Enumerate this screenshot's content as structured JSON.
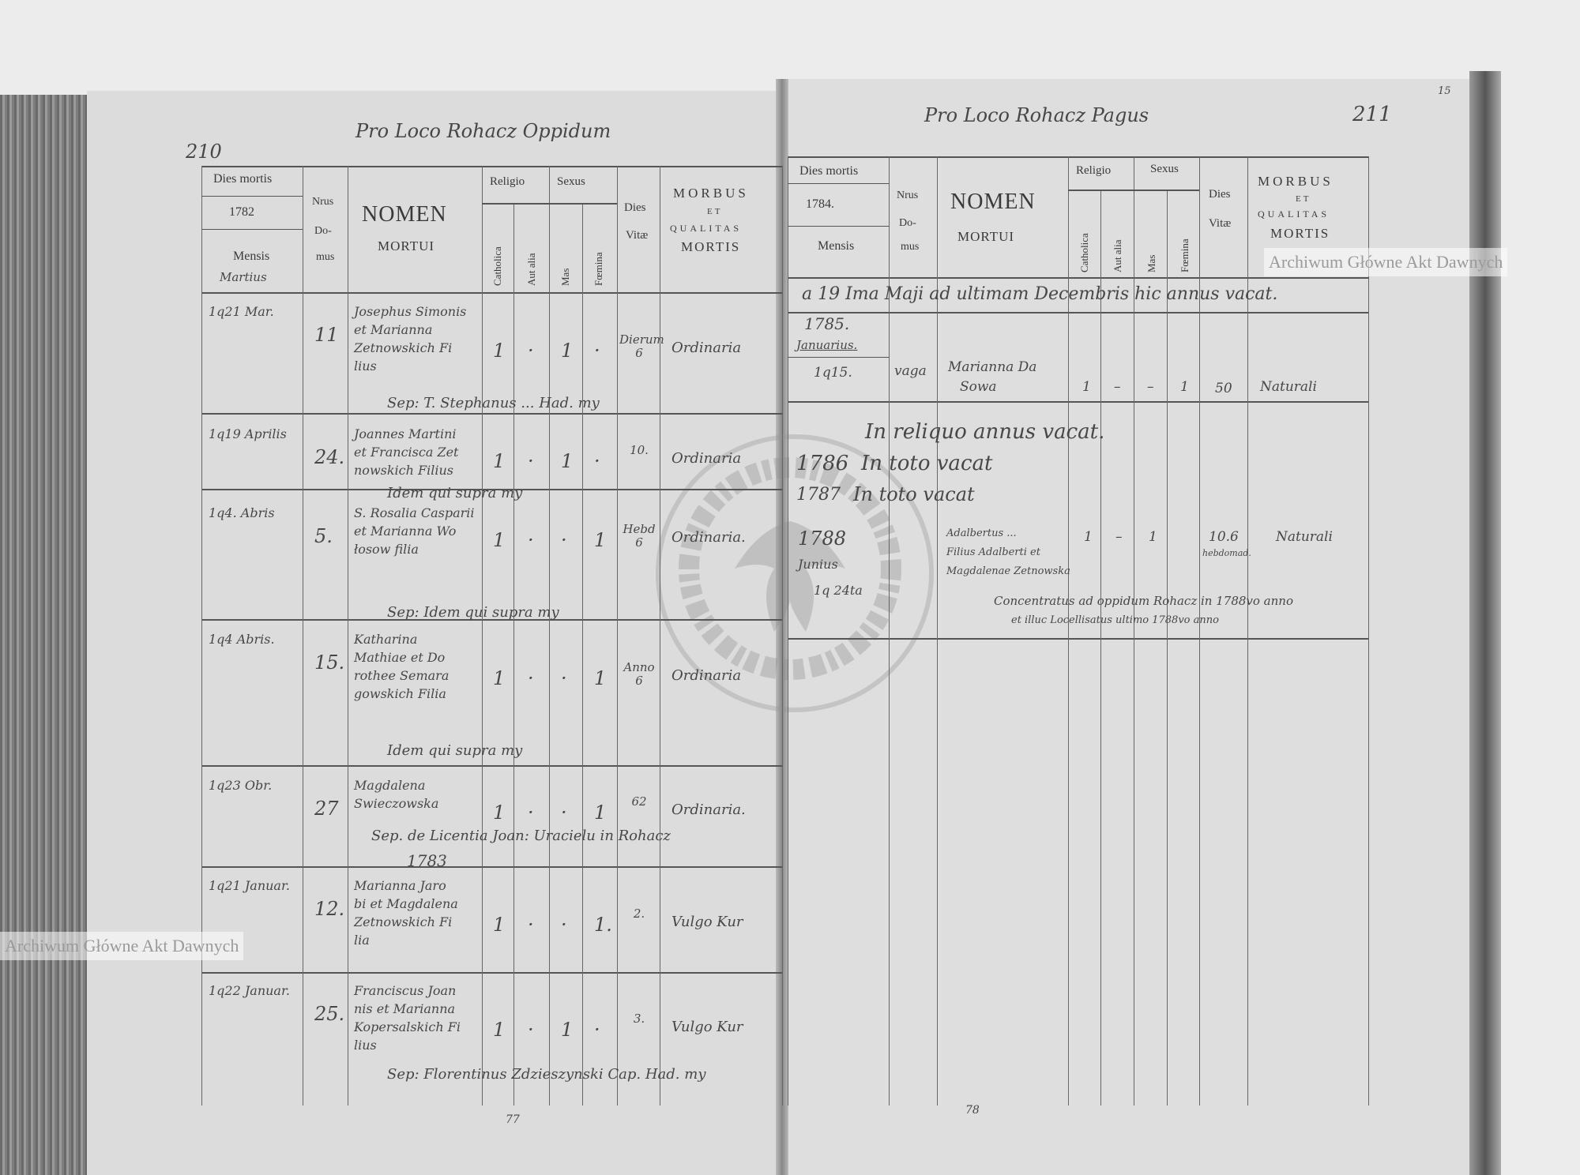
{
  "watermark": "Archiwum Główne Akt Dawnych",
  "stamp": "ARCHIWUM GŁÓWNE AKT DAWNYCH",
  "left_page": {
    "page_number": "210",
    "heading": "Pro Loco Rohacz Oppidum",
    "footer_number": "77",
    "header": {
      "dies_mortis": "Dies mortis",
      "year": "1782",
      "mensis": "Mensis",
      "month": "Martius",
      "nrus": "Nrus",
      "do": "Do-",
      "mus": "mus",
      "nomen": "NOMEN",
      "mortui": "MORTUI",
      "religio": "Religio",
      "sexus": "Sexus",
      "catholica": "Catholica",
      "aut_alia": "Aut alia",
      "mas": "Mas",
      "foemina": "Fœmina",
      "dies": "Dies",
      "vitae": "Vitæ",
      "morbus": "MORBUS",
      "et": "ET",
      "qualitas": "QUALITAS",
      "mortis": "MORTIS"
    },
    "rows": [
      {
        "date": "1q21 Mar.",
        "nrus": "11",
        "name": [
          "Josephus Simonis",
          "et Marianna",
          "Zetnowskich Fi",
          "lius"
        ],
        "catholica": "1",
        "aut_alia": "·",
        "mas": "1",
        "foemina": "·",
        "dies": "Dierum 6",
        "morbus": "Ordinaria",
        "sep": "Sep: T. Stephanus ... Had. my"
      },
      {
        "date": "1q19 Aprilis",
        "nrus": "24.",
        "name": [
          "Joannes Martini",
          "et Francisca Zet",
          "nowskich Filius"
        ],
        "catholica": "1",
        "aut_alia": "·",
        "mas": "1",
        "foemina": "·",
        "dies": "10.",
        "morbus": "Ordinaria",
        "sep": "Idem qui supra my"
      },
      {
        "date": "1q4. Abris",
        "nrus": "5.",
        "name": [
          "S. Rosalia Casparii",
          "et Marianna Wo",
          "łosow filia"
        ],
        "catholica": "1",
        "aut_alia": "·",
        "mas": "·",
        "foemina": "1",
        "dies": "Hebd 6",
        "morbus": "Ordinaria.",
        "sep": "Sep: Idem qui supra my"
      },
      {
        "date": "1q4 Abris.",
        "nrus": "15.",
        "name": [
          "Katharina",
          "Mathiae et Do",
          "rothee Semara",
          "gowskich Filia"
        ],
        "catholica": "1",
        "aut_alia": "·",
        "mas": "·",
        "foemina": "1",
        "dies": "Anno 6",
        "morbus": "Ordinaria",
        "sep": "Idem qui supra my"
      },
      {
        "date": "1q23 Obr.",
        "nrus": "27",
        "name": [
          "Magdalena",
          "Swieczowska"
        ],
        "catholica": "1",
        "aut_alia": "·",
        "mas": "·",
        "foemina": "1",
        "dies": "62",
        "morbus": "Ordinaria.",
        "sep": "Sep. de Licentia Joan: Uracielu in Rohacz"
      },
      {
        "year_mark": "1783",
        "date": "1q21 Januar.",
        "nrus": "12.",
        "name": [
          "Marianna Jaro",
          "bi et Magdalena",
          "Zetnowskich Fi",
          "lia"
        ],
        "catholica": "1",
        "aut_alia": "·",
        "mas": "·",
        "foemina": "1.",
        "dies": "2.",
        "morbus": "Vulgo Kur",
        "sep": ""
      },
      {
        "date": "1q22 Januar.",
        "nrus": "25.",
        "name": [
          "Franciscus Joan",
          "nis et Marianna",
          "Kopersalskich Fi",
          "lius"
        ],
        "catholica": "1",
        "aut_alia": "·",
        "mas": "1",
        "foemina": "·",
        "dies": "3.",
        "morbus": "Vulgo Kur",
        "sep": "Sep: Florentinus Zdzieszynski Cap. Had. my"
      }
    ]
  },
  "right_page": {
    "page_number": "211",
    "corner_number": "15",
    "heading": "Pro Loco Rohacz Pagus",
    "footer_number": "78",
    "header": {
      "dies_mortis": "Dies mortis",
      "year": "1784.",
      "mensis": "Mensis",
      "nrus": "Nrus",
      "do": "Do-",
      "mus": "mus",
      "nomen": "NOMEN",
      "mortui": "MORTUI",
      "religio": "Religio",
      "sexus": "Sexus",
      "catholica": "Catholica",
      "aut_alia": "Aut alia",
      "mas": "Mas",
      "foemina": "Fœmina",
      "dies": "Dies",
      "vitae": "Vitæ",
      "morbus": "MORBUS",
      "et": "ET",
      "qualitas": "QUALITAS",
      "mortis": "MORTIS"
    },
    "note_1784": "a 19 Ima Maji ad ultimam Decembris hic annus vacat.",
    "year_1785": "1785.",
    "month_1785": "Januarius.",
    "entry_1785": {
      "date": "1q15.",
      "nrus": "vaga",
      "name": [
        "Marianna Da",
        "Sowa"
      ],
      "catholica": "1",
      "aut_alia": "–",
      "mas": "–",
      "foemina": "1",
      "dies": "50",
      "morbus": "Naturali"
    },
    "note_reliquo": "In reliquo annus vacat.",
    "year_1786": "1786",
    "note_1786": "In toto vacat",
    "year_1787": "1787",
    "note_1787": "In toto vacat",
    "year_1788": "1788",
    "month_1788": "Junius",
    "day_1788": "1q 24ta",
    "entry_1788": {
      "name": [
        "Adalbertus ...",
        "Filius Adalberti et",
        "Magdalenae Zetnowska"
      ],
      "catholica": "1",
      "aut_alia": "–",
      "mas": "1",
      "dies": "10.6",
      "dies_unit": "hebdomad.",
      "morbus": "Naturali"
    },
    "note_concentratus": [
      "Concentratus ad oppidum Rohacz in 1788vo anno",
      "et illuc Locellisatus ultimo 1788vo anno"
    ]
  }
}
